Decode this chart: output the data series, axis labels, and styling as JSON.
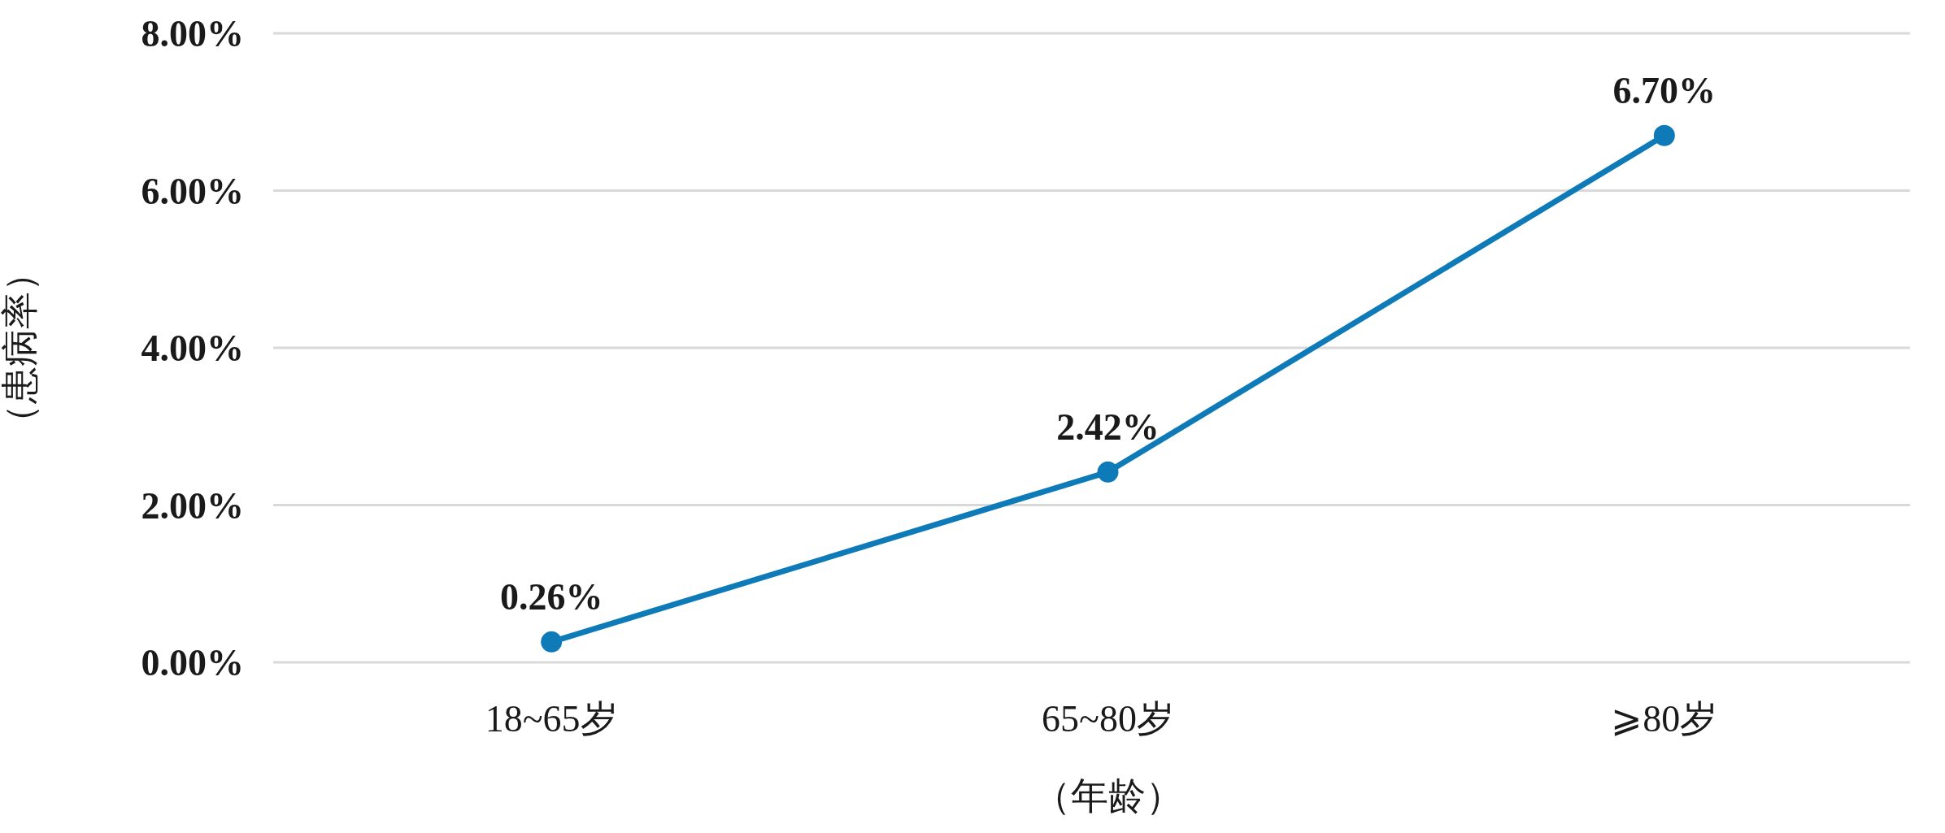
{
  "chart_data": {
    "type": "line",
    "xlabel": "（年龄）",
    "ylabel": "（患病率）",
    "categories": [
      "18~65岁",
      "65~80岁",
      "⩾80岁"
    ],
    "series": [
      {
        "color": "#0e7bb8",
        "values": [
          0.26,
          2.42,
          6.7
        ],
        "value_labels": [
          "0.26%",
          "2.42%",
          "6.70%"
        ]
      }
    ],
    "ylim": [
      0,
      8
    ],
    "yticks": [
      {
        "value": 0,
        "label": "0.00%"
      },
      {
        "value": 2,
        "label": "2.00%"
      },
      {
        "value": 4,
        "label": "4.00%"
      },
      {
        "value": 6,
        "label": "6.00%"
      },
      {
        "value": 8,
        "label": "8.00%"
      }
    ],
    "grid": "y",
    "marker": "circle"
  }
}
